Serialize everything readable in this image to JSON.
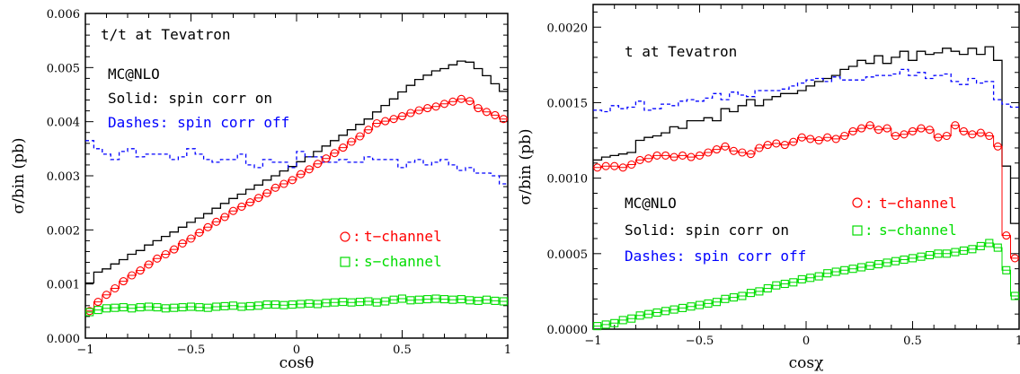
{
  "chart_data": [
    {
      "type": "line",
      "title": "t/t at Tevatron",
      "xlabel": "cosθ",
      "ylabel": "σ/bin (pb)",
      "xlim": [
        -1,
        1
      ],
      "ylim": [
        0,
        0.006
      ],
      "x_ticks": [
        "−1",
        "−0.5",
        "0",
        "0.5",
        "1"
      ],
      "x_tick_values": [
        -1,
        -0.5,
        0,
        0.5,
        1
      ],
      "y_ticks": [
        "0.000",
        "0.001",
        "0.002",
        "0.003",
        "0.004",
        "0.005",
        "0.006"
      ],
      "y_tick_values": [
        0,
        0.001,
        0.002,
        0.003,
        0.004,
        0.005,
        0.006
      ],
      "annotations": [
        {
          "text": "MC@NLO",
          "color": "#000000"
        },
        {
          "text": "Solid: spin corr on",
          "color": "#000000"
        },
        {
          "text": "Dashes: spin corr off",
          "color": "#0000ff"
        }
      ],
      "markers_legend": [
        {
          "text": "t−channel",
          "symbol": "circle",
          "color": "#ff0000"
        },
        {
          "text": "s−channel",
          "symbol": "square",
          "color": "#00dd00"
        }
      ],
      "series": [
        {
          "style": "solid",
          "color": "#000000",
          "values": [
            0.00102,
            0.00122,
            0.00128,
            0.00137,
            0.00145,
            0.00155,
            0.00162,
            0.00172,
            0.0018,
            0.00188,
            0.00196,
            0.00205,
            0.00214,
            0.00222,
            0.0023,
            0.0024,
            0.00249,
            0.00258,
            0.00266,
            0.00275,
            0.00283,
            0.00292,
            0.003,
            0.00309,
            0.00317,
            0.00326,
            0.00335,
            0.00345,
            0.00355,
            0.00365,
            0.00375,
            0.00385,
            0.00395,
            0.00405,
            0.00418,
            0.0043,
            0.00442,
            0.00455,
            0.00467,
            0.00478,
            0.00486,
            0.00494,
            0.00498,
            0.00505,
            0.00512,
            0.0051,
            0.00498,
            0.00485,
            0.0047,
            0.00456
          ]
        },
        {
          "style": "dashed",
          "color": "#0000ff",
          "values": [
            0.00365,
            0.0035,
            0.0034,
            0.0033,
            0.00345,
            0.0035,
            0.00335,
            0.0034,
            0.0034,
            0.0034,
            0.0033,
            0.00335,
            0.0035,
            0.0034,
            0.0033,
            0.00325,
            0.0033,
            0.0033,
            0.0034,
            0.0032,
            0.00315,
            0.0033,
            0.00325,
            0.00325,
            0.00315,
            0.00345,
            0.00335,
            0.00335,
            0.00325,
            0.00325,
            0.0033,
            0.00325,
            0.00325,
            0.00335,
            0.0033,
            0.0033,
            0.0033,
            0.00315,
            0.00325,
            0.0033,
            0.0032,
            0.00325,
            0.0033,
            0.0032,
            0.0031,
            0.00315,
            0.00305,
            0.00305,
            0.003,
            0.00285
          ]
        },
        {
          "style": "markers",
          "color": "#ff0000",
          "marker": "circle",
          "name": "t−channel",
          "values": [
            0.0005,
            0.00067,
            0.0008,
            0.00092,
            0.00105,
            0.00116,
            0.00125,
            0.00136,
            0.00147,
            0.00155,
            0.00164,
            0.00175,
            0.00184,
            0.00195,
            0.00205,
            0.00215,
            0.00224,
            0.00235,
            0.00243,
            0.00251,
            0.00259,
            0.00268,
            0.00278,
            0.00285,
            0.00292,
            0.00303,
            0.00312,
            0.00322,
            0.00332,
            0.00342,
            0.00352,
            0.00363,
            0.00373,
            0.00385,
            0.00397,
            0.00401,
            0.00405,
            0.0041,
            0.00416,
            0.00421,
            0.00425,
            0.00428,
            0.00433,
            0.00437,
            0.00442,
            0.00438,
            0.00425,
            0.00418,
            0.00412,
            0.00405
          ]
        },
        {
          "style": "markers",
          "color": "#00dd00",
          "marker": "square",
          "name": "s−channel",
          "values": [
            0.00048,
            0.00052,
            0.00055,
            0.00056,
            0.00057,
            0.00055,
            0.00057,
            0.00058,
            0.00057,
            0.00055,
            0.00056,
            0.00057,
            0.00058,
            0.00057,
            0.00056,
            0.00058,
            0.00059,
            0.0006,
            0.00058,
            0.00059,
            0.0006,
            0.00062,
            0.00062,
            0.00061,
            0.00062,
            0.00063,
            0.00064,
            0.00063,
            0.00065,
            0.00066,
            0.00067,
            0.00066,
            0.00067,
            0.00068,
            0.00066,
            0.00068,
            0.00071,
            0.00073,
            0.0007,
            0.00071,
            0.00072,
            0.00073,
            0.00072,
            0.00071,
            0.00072,
            0.0007,
            0.00069,
            0.00071,
            0.00069,
            0.00068
          ]
        }
      ]
    },
    {
      "type": "line",
      "title": "t at Tevatron",
      "xlabel": "cosχ",
      "ylabel": "σ/bin (pb)",
      "xlim": [
        -1,
        1
      ],
      "ylim": [
        0,
        0.00215
      ],
      "x_ticks": [
        "−1",
        "−0.5",
        "0",
        "0.5",
        "1"
      ],
      "x_tick_values": [
        -1,
        -0.5,
        0,
        0.5,
        1
      ],
      "y_ticks": [
        "0.0000",
        "0.0005",
        "0.0010",
        "0.0015",
        "0.0020"
      ],
      "y_tick_values": [
        0,
        0.0005,
        0.001,
        0.0015,
        0.002
      ],
      "annotations": [
        {
          "text": "MC@NLO",
          "color": "#000000"
        },
        {
          "text": "Solid: spin corr on",
          "color": "#000000"
        },
        {
          "text": "Dashes: spin corr off",
          "color": "#0000ff"
        }
      ],
      "markers_legend": [
        {
          "text": "t−channel",
          "symbol": "circle",
          "color": "#ff0000"
        },
        {
          "text": "s−channel",
          "symbol": "square",
          "color": "#00dd00"
        }
      ],
      "series": [
        {
          "style": "solid",
          "color": "#000000",
          "values": [
            0.00112,
            0.00114,
            0.00115,
            0.00116,
            0.00117,
            0.00125,
            0.00127,
            0.00128,
            0.0013,
            0.00134,
            0.00133,
            0.00138,
            0.00138,
            0.0014,
            0.00138,
            0.00146,
            0.00144,
            0.00148,
            0.00152,
            0.00148,
            0.00152,
            0.00154,
            0.00156,
            0.00156,
            0.00158,
            0.00161,
            0.00164,
            0.00166,
            0.00168,
            0.00172,
            0.00174,
            0.00178,
            0.00176,
            0.00181,
            0.00176,
            0.0018,
            0.00184,
            0.00178,
            0.00184,
            0.00182,
            0.00183,
            0.00186,
            0.00184,
            0.00182,
            0.00186,
            0.00182,
            0.00187,
            0.00178,
            0.00108,
            0.0007
          ]
        },
        {
          "style": "dashed",
          "color": "#0000ff",
          "values": [
            0.00145,
            0.00144,
            0.00148,
            0.00146,
            0.00147,
            0.00151,
            0.00145,
            0.00146,
            0.00149,
            0.00148,
            0.00151,
            0.00152,
            0.00151,
            0.00153,
            0.00156,
            0.00152,
            0.00157,
            0.00155,
            0.00154,
            0.00158,
            0.00158,
            0.00158,
            0.00159,
            0.00161,
            0.00163,
            0.00165,
            0.00166,
            0.00164,
            0.00167,
            0.00165,
            0.00165,
            0.00165,
            0.00167,
            0.00168,
            0.00168,
            0.00169,
            0.00172,
            0.00168,
            0.0017,
            0.00166,
            0.00168,
            0.00169,
            0.00164,
            0.00162,
            0.00166,
            0.00163,
            0.00164,
            0.00152,
            0.00149,
            0.00147
          ]
        },
        {
          "style": "markers",
          "color": "#ff0000",
          "marker": "circle",
          "name": "t−channel",
          "values": [
            0.00107,
            0.00108,
            0.00108,
            0.00107,
            0.00109,
            0.00112,
            0.00113,
            0.00115,
            0.00115,
            0.00114,
            0.00115,
            0.00114,
            0.00115,
            0.00117,
            0.00119,
            0.00121,
            0.00118,
            0.00117,
            0.00116,
            0.0012,
            0.00122,
            0.00123,
            0.00122,
            0.00124,
            0.00127,
            0.00126,
            0.00125,
            0.00127,
            0.00126,
            0.00128,
            0.00131,
            0.00133,
            0.00135,
            0.00132,
            0.00133,
            0.00128,
            0.00129,
            0.00131,
            0.00133,
            0.00132,
            0.00127,
            0.00128,
            0.00135,
            0.00131,
            0.00129,
            0.0013,
            0.00128,
            0.00121,
            0.00062,
            0.00047
          ]
        },
        {
          "style": "markers",
          "color": "#00dd00",
          "marker": "square",
          "name": "s−channel",
          "values": [
            2e-05,
            3e-05,
            4e-05,
            6e-05,
            7e-05,
            9e-05,
            0.0001,
            0.00011,
            0.00012,
            0.00013,
            0.00014,
            0.00015,
            0.00016,
            0.00017,
            0.00018,
            0.0002,
            0.00021,
            0.00022,
            0.00024,
            0.00025,
            0.00027,
            0.00029,
            0.0003,
            0.00031,
            0.00033,
            0.00034,
            0.00035,
            0.00037,
            0.00038,
            0.00039,
            0.0004,
            0.00041,
            0.00042,
            0.00043,
            0.00044,
            0.00045,
            0.00046,
            0.00047,
            0.00048,
            0.00049,
            0.0005,
            0.0005,
            0.00051,
            0.00052,
            0.00053,
            0.00055,
            0.00057,
            0.00054,
            0.00039,
            0.00022
          ]
        }
      ]
    }
  ]
}
